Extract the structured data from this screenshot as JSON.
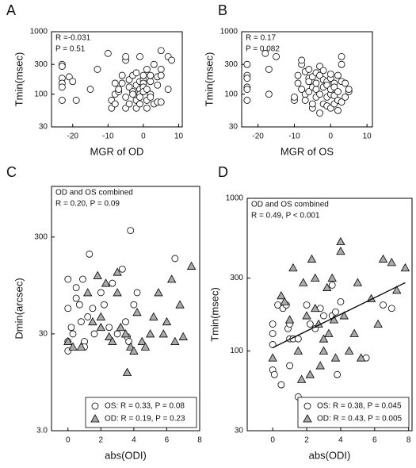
{
  "chart_data": [
    {
      "type": "scatter",
      "panel_label": "A",
      "xlabel": "MGR of OD",
      "ylabel": "Tmin(msec)",
      "ylog": true,
      "xlim": [
        -26,
        11
      ],
      "xticks": [
        -20,
        -10,
        0,
        10
      ],
      "ylim": [
        30,
        1000
      ],
      "yticks": [
        30,
        100,
        300,
        1000
      ],
      "annotations": [
        "R =-0.031",
        "P = 0.51"
      ],
      "series": [
        {
          "color": "#ffffff",
          "marker": "circle",
          "x": [
            -23,
            -23,
            -23,
            -23,
            -23,
            -23,
            -21,
            -20,
            -19,
            -15,
            -13,
            -10,
            -9,
            -9,
            -8,
            -8,
            -8,
            -7,
            -7,
            -6,
            -6,
            -5,
            -5,
            -5,
            -5,
            -4,
            -4,
            -4,
            -3,
            -3,
            -3,
            -2,
            -2,
            -2,
            -2,
            -1,
            -1,
            -1,
            -1,
            -1,
            -1,
            0,
            0,
            0,
            0,
            0,
            1,
            1,
            1,
            1,
            2,
            2,
            2,
            2,
            3,
            3,
            4,
            4,
            4,
            5,
            5,
            5,
            5,
            7,
            7,
            8
          ],
          "values": [
            300,
            280,
            180,
            150,
            130,
            80,
            190,
            160,
            80,
            120,
            250,
            450,
            80,
            60,
            150,
            100,
            70,
            110,
            120,
            200,
            150,
            350,
            400,
            90,
            60,
            130,
            170,
            70,
            110,
            200,
            100,
            140,
            220,
            80,
            60,
            400,
            160,
            120,
            100,
            90,
            70,
            170,
            150,
            130,
            110,
            200,
            250,
            120,
            80,
            60,
            100,
            90,
            160,
            200,
            300,
            70,
            140,
            190,
            75,
            250,
            200,
            500,
            75,
            400,
            120,
            350
          ]
        }
      ]
    },
    {
      "type": "scatter",
      "panel_label": "B",
      "xlabel": "MGR of OS",
      "ylabel": "Tmin(msec)",
      "ylog": true,
      "xlim": [
        -24.5,
        11.5
      ],
      "xticks": [
        -20,
        -10,
        0,
        10
      ],
      "ylim": [
        30,
        1000
      ],
      "yticks": [
        30,
        100,
        300,
        1000
      ],
      "annotations": [
        "R = 0.17",
        "P = 0.082"
      ],
      "series": [
        {
          "color": "#ffffff",
          "marker": "circle",
          "x": [
            -23,
            -23,
            -23,
            -23,
            -23,
            -23,
            -18,
            -17,
            -17,
            -15,
            -10,
            -10,
            -9,
            -9,
            -8,
            -8,
            -8,
            -7,
            -7,
            -7,
            -6,
            -6,
            -6,
            -6,
            -5,
            -5,
            -5,
            -5,
            -4,
            -4,
            -4,
            -4,
            -3,
            -3,
            -3,
            -3,
            -2,
            -2,
            -2,
            -2,
            -1,
            -1,
            -1,
            -1,
            0,
            0,
            0,
            0,
            0,
            1,
            1,
            1,
            1,
            2,
            2,
            2,
            2,
            3,
            3,
            3,
            3,
            4,
            4,
            5,
            5
          ],
          "values": [
            300,
            200,
            180,
            130,
            120,
            80,
            450,
            250,
            100,
            400,
            80,
            90,
            150,
            200,
            300,
            350,
            120,
            100,
            80,
            230,
            250,
            180,
            160,
            110,
            60,
            70,
            190,
            130,
            120,
            150,
            220,
            90,
            280,
            200,
            100,
            50,
            70,
            130,
            170,
            240,
            160,
            140,
            90,
            65,
            100,
            180,
            210,
            120,
            60,
            150,
            130,
            70,
            95,
            200,
            110,
            80,
            55,
            400,
            300,
            160,
            75,
            150,
            90,
            110,
            120
          ]
        }
      ]
    },
    {
      "type": "scatter",
      "panel_label": "C",
      "xlabel": "abs(ODI)",
      "ylabel": "Dmin(arcsec)",
      "ylog": true,
      "xlim": [
        -1,
        8
      ],
      "xticks": [
        0,
        2,
        4,
        6,
        8
      ],
      "ylim": [
        3,
        1000
      ],
      "yticks": [
        {
          "value": 3,
          "label": "3.0"
        },
        30,
        300
      ],
      "annotations": [
        "OD and OS combined",
        "R = 0.20, P = 0.09"
      ],
      "series": [
        {
          "name": "OS: R = 0.33, P = 0.08",
          "color": "#ffffff",
          "marker": "circle",
          "x": [
            0,
            0,
            0,
            0,
            0.2,
            0.3,
            0.5,
            0.5,
            0.7,
            0.8,
            0.9,
            1,
            1,
            1.2,
            1.3,
            1.5,
            1.6,
            2,
            2.2,
            2.5,
            2.7,
            3,
            3.3,
            3.5,
            3.6,
            3.7,
            3.8,
            4,
            4.2,
            6.5
          ],
          "values": [
            110,
            55,
            25,
            20,
            35,
            30,
            90,
            70,
            60,
            40,
            110,
            25,
            22,
            45,
            200,
            55,
            30,
            80,
            60,
            35,
            100,
            30,
            140,
            40,
            28,
            25,
            350,
            60,
            80,
            180
          ]
        },
        {
          "name": "OD: R = 0.19, P = 0.23",
          "color": "#aaaaaa",
          "marker": "triangle",
          "x": [
            0,
            0.3,
            0.8,
            1.2,
            1.5,
            1.8,
            2,
            2,
            2.3,
            2.5,
            2.7,
            3,
            3,
            3.2,
            3.5,
            3.6,
            3.8,
            4,
            4.2,
            4.5,
            4.7,
            5,
            5.2,
            5.5,
            5.8,
            6,
            6.3,
            6.5,
            6.8,
            7,
            7.5
          ],
          "values": [
            25,
            22,
            22,
            80,
            40,
            120,
            45,
            35,
            100,
            28,
            25,
            130,
            80,
            35,
            30,
            12,
            22,
            20,
            50,
            25,
            22,
            30,
            45,
            80,
            30,
            40,
            110,
            25,
            60,
            28,
            150
          ]
        }
      ]
    },
    {
      "type": "scatter",
      "panel_label": "D",
      "xlabel": "abs(ODI)",
      "ylabel": "Tmin(msec)",
      "ylog": true,
      "xlim": [
        -1.5,
        8.2
      ],
      "xticks": [
        0,
        2,
        4,
        6,
        8
      ],
      "ylim": [
        30,
        1000
      ],
      "yticks": [
        30,
        100,
        300,
        1000
      ],
      "annotations": [
        "OD and OS combined",
        "R = 0.49, P < 0.001"
      ],
      "fit": {
        "x": [
          0,
          7.8
        ],
        "values": [
          105,
          280
        ]
      },
      "series": [
        {
          "name": "OS: R = 0.38, P = 0.045",
          "color": "#ffffff",
          "marker": "circle",
          "x": [
            0,
            0,
            0,
            0,
            0.1,
            0.3,
            0.5,
            0.6,
            0.8,
            0.9,
            1,
            1,
            1,
            1.2,
            1.5,
            1.5,
            2,
            2.2,
            2.5,
            2.8,
            3,
            3.5,
            3.5,
            3.7,
            3.8,
            4,
            5.5,
            6.5,
            7
          ],
          "values": [
            150,
            130,
            110,
            75,
            70,
            200,
            60,
            190,
            200,
            140,
            150,
            120,
            80,
            120,
            50,
            120,
            200,
            150,
            140,
            190,
            170,
            170,
            270,
            180,
            70,
            210,
            90,
            200,
            190
          ]
        },
        {
          "name": "OD: R = 0.43, P = 0.005",
          "color": "#aaaaaa",
          "marker": "triangle",
          "x": [
            0,
            0.5,
            0.7,
            1,
            1.2,
            1.5,
            1.7,
            1.8,
            2,
            2.2,
            2.3,
            2.5,
            2.5,
            2.7,
            2.8,
            3,
            3,
            3.2,
            3.3,
            3.5,
            3.6,
            3.7,
            4,
            4,
            4.2,
            4.5,
            4.8,
            5,
            5.2,
            5.8,
            6.2,
            6.5,
            7,
            7.3,
            7.8
          ],
          "values": [
            90,
            230,
            210,
            160,
            350,
            100,
            65,
            280,
            170,
            70,
            400,
            190,
            300,
            150,
            80,
            100,
            120,
            260,
            130,
            300,
            160,
            90,
            520,
            450,
            170,
            100,
            130,
            280,
            90,
            220,
            150,
            400,
            380,
            250,
            350
          ]
        }
      ]
    }
  ]
}
